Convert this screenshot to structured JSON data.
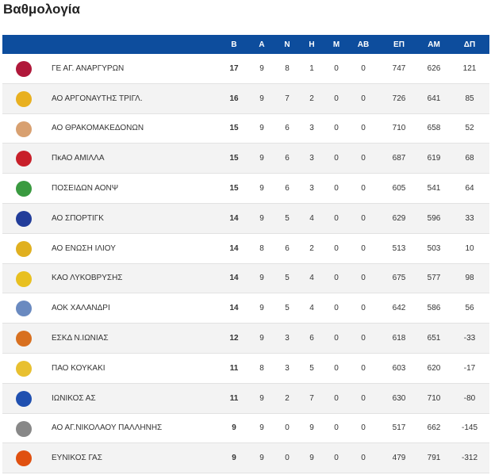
{
  "header": {
    "title": "Βαθμολογία"
  },
  "table": {
    "columns": [
      "Β",
      "Α",
      "Ν",
      "Η",
      "Μ",
      "ΑΒ",
      "ΕΠ",
      "ΑΜ",
      "ΔΠ"
    ],
    "rows": [
      [
        "ΓΕ ΑΓ. ΑΝΑΡΓΥΡΩΝ",
        17,
        9,
        8,
        1,
        0,
        0,
        747,
        626,
        121
      ],
      [
        "ΑΟ ΑΡΓΟΝΑΥΤΗΣ ΤΡΙΓΛ.",
        16,
        9,
        7,
        2,
        0,
        0,
        726,
        641,
        85
      ],
      [
        "ΑΟ ΘΡΑΚΟΜΑΚΕΔΟΝΩΝ",
        15,
        9,
        6,
        3,
        0,
        0,
        710,
        658,
        52
      ],
      [
        "ΠκΑΟ ΑΜΙΛΛΑ",
        15,
        9,
        6,
        3,
        0,
        0,
        687,
        619,
        68
      ],
      [
        "ΠΟΣΕΙΔΩΝ ΑΟΝΨ",
        15,
        9,
        6,
        3,
        0,
        0,
        605,
        541,
        64
      ],
      [
        "ΑΟ ΣΠΟΡΤΙΓΚ",
        14,
        9,
        5,
        4,
        0,
        0,
        629,
        596,
        33
      ],
      [
        "ΑΟ ΕΝΩΣΗ ΙΛΙΟΥ",
        14,
        8,
        6,
        2,
        0,
        0,
        513,
        503,
        10
      ],
      [
        "ΚΑΟ ΛΥΚΟΒΡΥΣΗΣ",
        14,
        9,
        5,
        4,
        0,
        0,
        675,
        577,
        98
      ],
      [
        "ΑΟΚ ΧΑΛΑΝΔΡΙ",
        14,
        9,
        5,
        4,
        0,
        0,
        642,
        586,
        56
      ],
      [
        "ΕΣΚΔ Ν.ΙΩΝΙΑΣ",
        12,
        9,
        3,
        6,
        0,
        0,
        618,
        651,
        -33
      ],
      [
        "ΠΑΟ ΚΟΥΚΑΚΙ",
        11,
        8,
        3,
        5,
        0,
        0,
        603,
        620,
        -17
      ],
      [
        "ΙΩΝΙΚΟΣ ΑΣ",
        11,
        9,
        2,
        7,
        0,
        0,
        630,
        710,
        -80
      ],
      [
        "ΑΟ ΑΓ.ΝΙΚΟΛΑΟΥ ΠΑΛΛΗΝΗΣ",
        9,
        9,
        0,
        9,
        0,
        0,
        517,
        662,
        -145
      ],
      [
        "ΕΥΝΙΚΟΣ ΓΑΣ",
        9,
        9,
        0,
        9,
        0,
        0,
        479,
        791,
        -312
      ]
    ]
  }
}
